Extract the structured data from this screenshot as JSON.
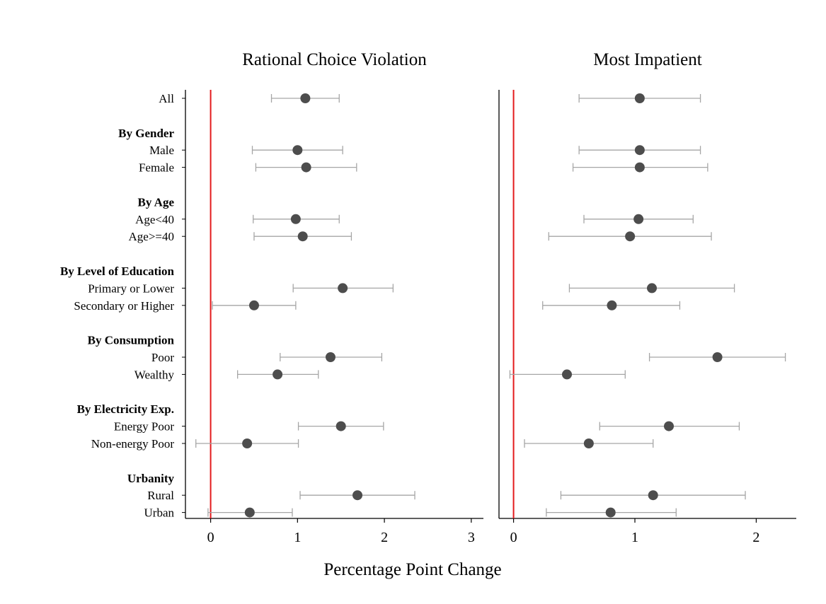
{
  "chart_data": {
    "type": "scatter",
    "xlabel": "Percentage Point Change",
    "colors": {
      "point": "#4d4d4d",
      "errorbar": "#a6a6a6",
      "reference_line": "#e31a1c",
      "axis": "#000000"
    },
    "rows": [
      {
        "label": "All",
        "group_header": false
      },
      {
        "label": "",
        "group_header": false,
        "spacer": true
      },
      {
        "label": "By Gender",
        "group_header": true
      },
      {
        "label": "Male",
        "group_header": false
      },
      {
        "label": "Female",
        "group_header": false
      },
      {
        "label": "",
        "group_header": false,
        "spacer": true
      },
      {
        "label": "By Age",
        "group_header": true
      },
      {
        "label": "Age<40",
        "group_header": false
      },
      {
        "label": "Age>=40",
        "group_header": false
      },
      {
        "label": "",
        "group_header": false,
        "spacer": true
      },
      {
        "label": "By Level of Education",
        "group_header": true
      },
      {
        "label": "Primary or Lower",
        "group_header": false
      },
      {
        "label": "Secondary or Higher",
        "group_header": false
      },
      {
        "label": "",
        "group_header": false,
        "spacer": true
      },
      {
        "label": "By Consumption",
        "group_header": true
      },
      {
        "label": "Poor",
        "group_header": false
      },
      {
        "label": "Wealthy",
        "group_header": false
      },
      {
        "label": "",
        "group_header": false,
        "spacer": true
      },
      {
        "label": "By Electricity Exp.",
        "group_header": true
      },
      {
        "label": "Energy Poor",
        "group_header": false
      },
      {
        "label": "Non-energy Poor",
        "group_header": false
      },
      {
        "label": "",
        "group_header": false,
        "spacer": true
      },
      {
        "label": "Urbanity",
        "group_header": true
      },
      {
        "label": "Rural",
        "group_header": false
      },
      {
        "label": "Urban",
        "group_header": false
      }
    ],
    "panels": [
      {
        "title": "Rational Choice Violation",
        "xlim": [
          -0.29,
          3.14
        ],
        "xticks": [
          "0",
          "1",
          "2",
          "3"
        ],
        "reference_line": 0,
        "estimates": [
          {
            "row": "All",
            "estimate": 1.09,
            "ci_low": 0.7,
            "ci_high": 1.48
          },
          {
            "row": "Male",
            "estimate": 1.0,
            "ci_low": 0.48,
            "ci_high": 1.52
          },
          {
            "row": "Female",
            "estimate": 1.1,
            "ci_low": 0.52,
            "ci_high": 1.68
          },
          {
            "row": "Age<40",
            "estimate": 0.98,
            "ci_low": 0.49,
            "ci_high": 1.48
          },
          {
            "row": "Age>=40",
            "estimate": 1.06,
            "ci_low": 0.5,
            "ci_high": 1.62
          },
          {
            "row": "Primary or Lower",
            "estimate": 1.52,
            "ci_low": 0.95,
            "ci_high": 2.1
          },
          {
            "row": "Secondary or Higher",
            "estimate": 0.5,
            "ci_low": 0.02,
            "ci_high": 0.98
          },
          {
            "row": "Poor",
            "estimate": 1.38,
            "ci_low": 0.8,
            "ci_high": 1.97
          },
          {
            "row": "Wealthy",
            "estimate": 0.77,
            "ci_low": 0.31,
            "ci_high": 1.24
          },
          {
            "row": "Energy Poor",
            "estimate": 1.5,
            "ci_low": 1.01,
            "ci_high": 1.99
          },
          {
            "row": "Non-energy Poor",
            "estimate": 0.42,
            "ci_low": -0.17,
            "ci_high": 1.01
          },
          {
            "row": "Rural",
            "estimate": 1.69,
            "ci_low": 1.03,
            "ci_high": 2.35
          },
          {
            "row": "Urban",
            "estimate": 0.45,
            "ci_low": -0.03,
            "ci_high": 0.94
          }
        ]
      },
      {
        "title": "Most Impatient",
        "xlim": [
          -0.12,
          2.33
        ],
        "xticks": [
          "0",
          "1",
          "2"
        ],
        "reference_line": 0,
        "estimates": [
          {
            "row": "All",
            "estimate": 1.04,
            "ci_low": 0.54,
            "ci_high": 1.54
          },
          {
            "row": "Male",
            "estimate": 1.04,
            "ci_low": 0.54,
            "ci_high": 1.54
          },
          {
            "row": "Female",
            "estimate": 1.04,
            "ci_low": 0.49,
            "ci_high": 1.6
          },
          {
            "row": "Age<40",
            "estimate": 1.03,
            "ci_low": 0.58,
            "ci_high": 1.48
          },
          {
            "row": "Age>=40",
            "estimate": 0.96,
            "ci_low": 0.29,
            "ci_high": 1.63
          },
          {
            "row": "Primary or Lower",
            "estimate": 1.14,
            "ci_low": 0.46,
            "ci_high": 1.82
          },
          {
            "row": "Secondary or Higher",
            "estimate": 0.81,
            "ci_low": 0.24,
            "ci_high": 1.37
          },
          {
            "row": "Poor",
            "estimate": 1.68,
            "ci_low": 1.12,
            "ci_high": 2.24
          },
          {
            "row": "Wealthy",
            "estimate": 0.44,
            "ci_low": -0.03,
            "ci_high": 0.92
          },
          {
            "row": "Energy Poor",
            "estimate": 1.28,
            "ci_low": 0.71,
            "ci_high": 1.86
          },
          {
            "row": "Non-energy Poor",
            "estimate": 0.62,
            "ci_low": 0.09,
            "ci_high": 1.15
          },
          {
            "row": "Rural",
            "estimate": 1.15,
            "ci_low": 0.39,
            "ci_high": 1.91
          },
          {
            "row": "Urban",
            "estimate": 0.8,
            "ci_low": 0.27,
            "ci_high": 1.34
          }
        ]
      }
    ]
  }
}
